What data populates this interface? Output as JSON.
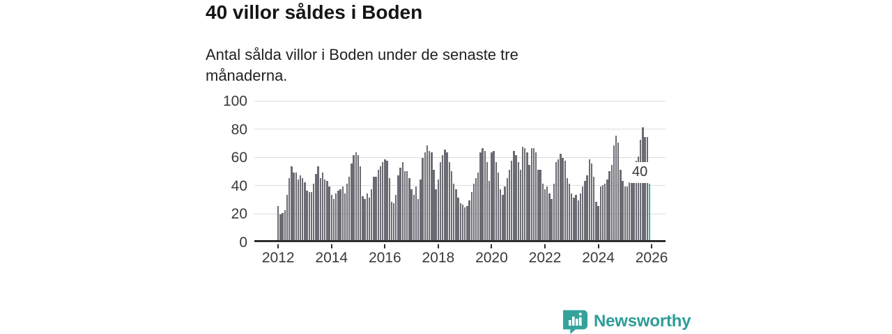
{
  "header": {
    "title": "40 villor såldes i Boden",
    "subtitle": "Antal sålda villor i Boden under de senaste tre månaderna."
  },
  "annotation": {
    "label": "40"
  },
  "logo": {
    "text": "Newsworthy",
    "icon": "newsworthy-speech-bubble-chart-icon",
    "color": "#2e9c97"
  },
  "colors": {
    "bar": "#6b6b73",
    "bar_highlight": "#2bb5ad",
    "grid": "#dcdcdc",
    "axis": "#2e2e2e",
    "text": "#3a3a3a"
  },
  "chart_data": {
    "type": "bar",
    "title": "40 villor såldes i Boden",
    "subtitle": "Antal sålda villor i Boden under de senaste tre månaderna.",
    "unit": "villor (rullande tre månader)",
    "start_year": 2012,
    "frequency": "monthly",
    "ylim": [
      0,
      100
    ],
    "y_ticks": [
      0,
      20,
      40,
      60,
      80,
      100
    ],
    "x_tick_years": [
      2012,
      2014,
      2016,
      2018,
      2020,
      2022,
      2024,
      2026
    ],
    "grid": true,
    "highlight_last": true,
    "highlight_value": 40,
    "values": [
      24,
      18,
      19,
      21,
      32,
      44,
      52,
      48,
      48,
      43,
      46,
      44,
      41,
      35,
      34,
      34,
      40,
      47,
      52,
      44,
      48,
      43,
      42,
      38,
      32,
      29,
      33,
      35,
      36,
      38,
      33,
      40,
      45,
      54,
      60,
      62,
      60,
      52,
      31,
      29,
      33,
      30,
      36,
      45,
      45,
      50,
      52,
      55,
      57,
      56,
      44,
      27,
      26,
      32,
      46,
      51,
      55,
      49,
      49,
      44,
      36,
      32,
      38,
      29,
      43,
      58,
      62,
      67,
      63,
      62,
      50,
      36,
      43,
      55,
      60,
      64,
      62,
      55,
      49,
      40,
      36,
      30,
      26,
      25,
      23,
      24,
      28,
      34,
      40,
      44,
      48,
      62,
      65,
      63,
      55,
      42,
      62,
      63,
      55,
      48,
      36,
      32,
      38,
      44,
      50,
      56,
      63,
      60,
      55,
      50,
      66,
      65,
      62,
      53,
      65,
      65,
      62,
      50,
      50,
      40,
      36,
      38,
      33,
      29,
      40,
      55,
      57,
      61,
      58,
      56,
      44,
      40,
      33,
      30,
      32,
      28,
      33,
      38,
      42,
      46,
      57,
      54,
      45,
      27,
      24,
      38,
      39,
      40,
      43,
      49,
      53,
      67,
      74,
      69,
      50,
      42,
      38,
      38,
      46,
      53,
      55,
      56,
      59,
      71,
      80,
      73,
      73,
      40
    ]
  }
}
